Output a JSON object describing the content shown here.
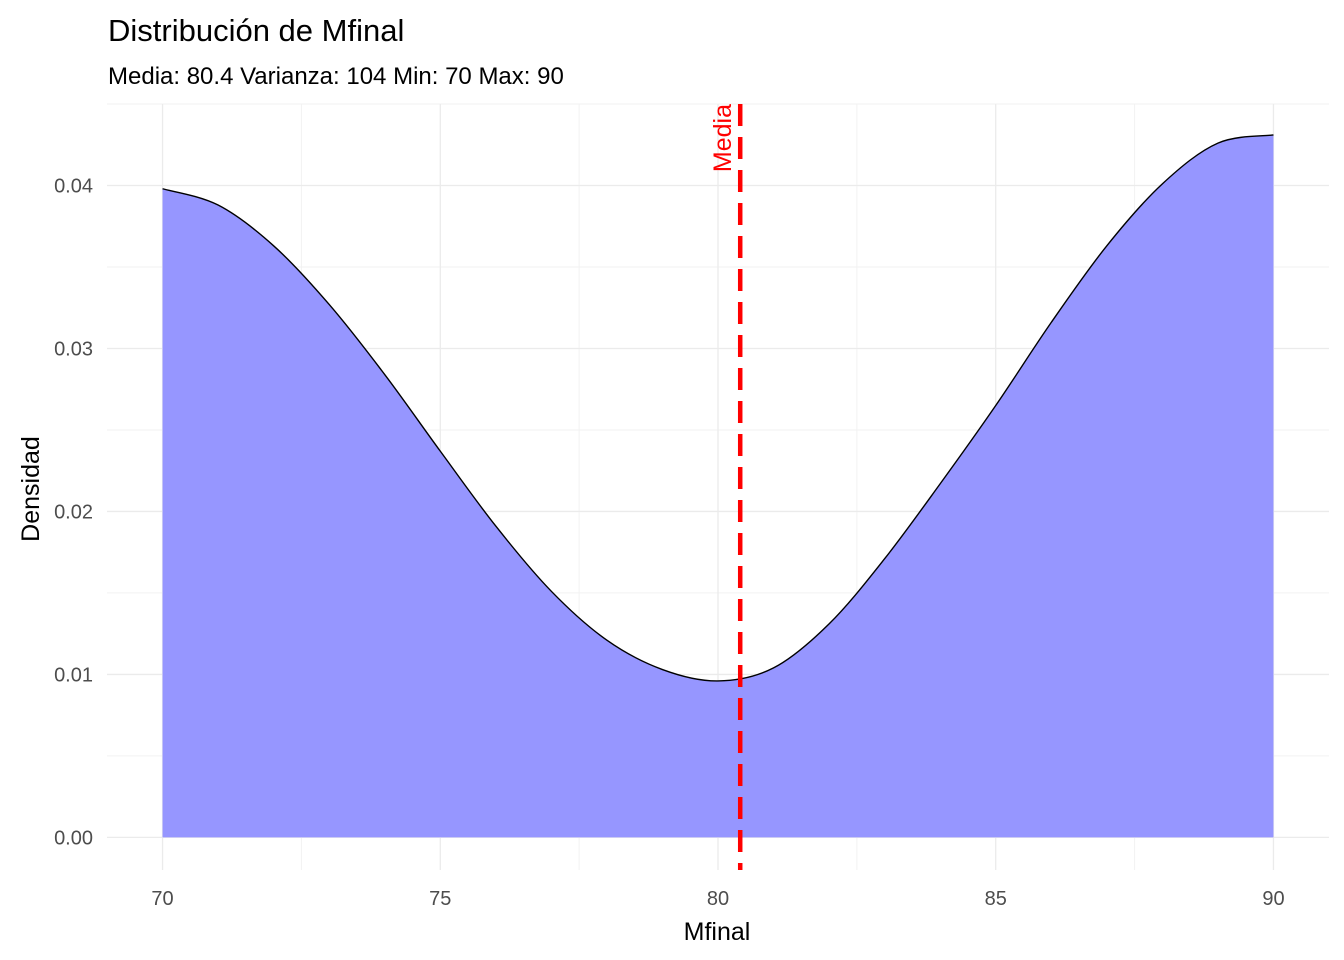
{
  "chart_data": {
    "type": "area",
    "title": "Distribución de Mfinal",
    "subtitle": "Media: 80.4 Varianza: 104 Min: 70 Max: 90",
    "xlabel": "Mfinal",
    "ylabel": "Densidad",
    "xlim": [
      69,
      91
    ],
    "ylim": [
      -0.002,
      0.045
    ],
    "xticks": [
      70,
      75,
      80,
      85,
      90
    ],
    "xtick_labels": [
      "70",
      "75",
      "80",
      "85",
      "90"
    ],
    "yticks": [
      0,
      0.01,
      0.02,
      0.03,
      0.04
    ],
    "ytick_labels": [
      "0.00",
      "0.01",
      "0.02",
      "0.03",
      "0.04"
    ],
    "grid": true,
    "legend": "none",
    "series": [
      {
        "fill_color": "#9696ff",
        "line_color": "#000000",
        "x": [
          70,
          71,
          72,
          73,
          74,
          75,
          76,
          77,
          78,
          79,
          80,
          81,
          82,
          83,
          84,
          85,
          86,
          87,
          88,
          89,
          90
        ],
        "y": [
          0.0398,
          0.0388,
          0.0363,
          0.0327,
          0.0284,
          0.0237,
          0.0191,
          0.0151,
          0.0121,
          0.0103,
          0.0096,
          0.0104,
          0.0131,
          0.0171,
          0.0217,
          0.0265,
          0.0316,
          0.0363,
          0.0401,
          0.0426,
          0.0431
        ]
      }
    ],
    "annotations": [
      {
        "type": "vline",
        "x": 80.4,
        "label": "Media",
        "color": "#ff0000",
        "style": "dashed"
      }
    ]
  }
}
